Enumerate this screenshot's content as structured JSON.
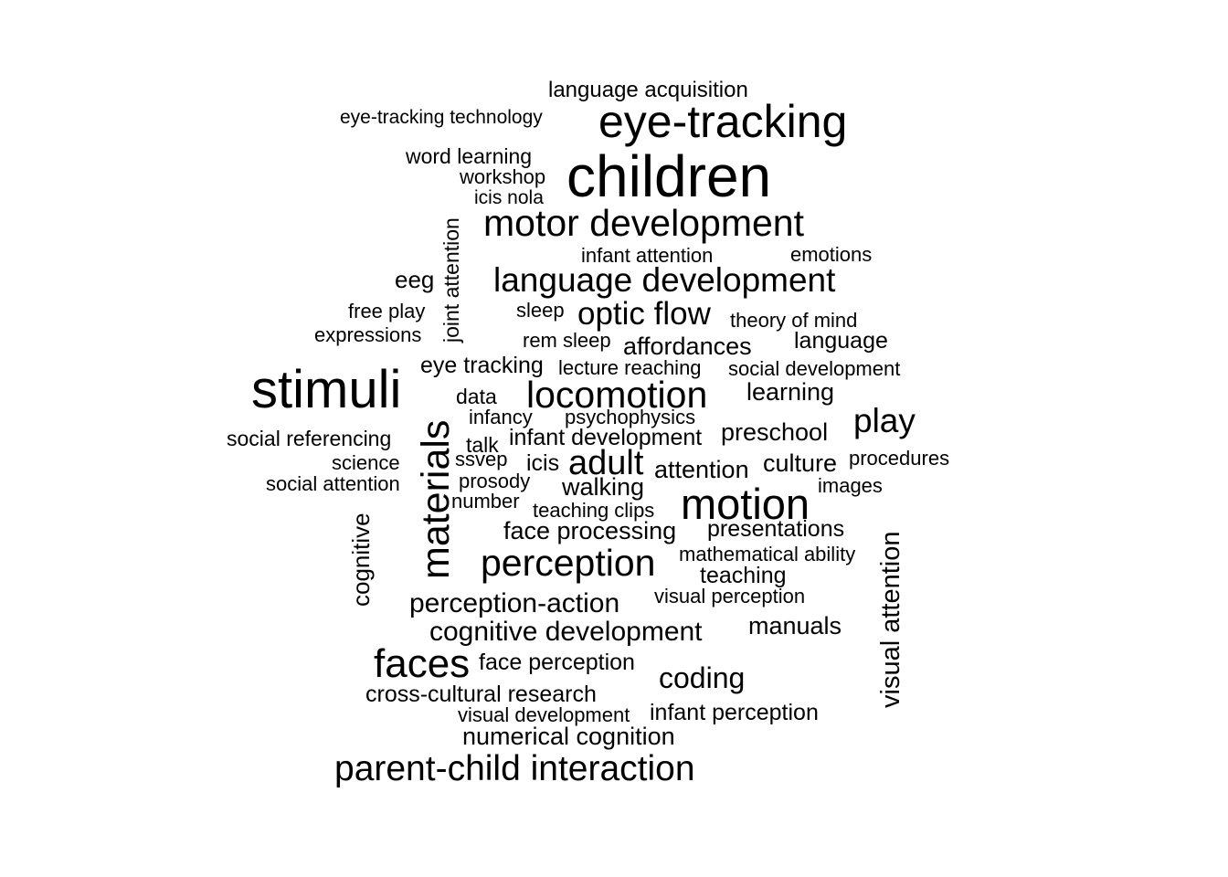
{
  "words": [
    "language acquisition",
    "eye-tracking technology",
    "eye-tracking",
    "word learning",
    "workshop",
    "children",
    "icis nola",
    "motor development",
    "infant attention",
    "emotions",
    "eeg",
    "language development",
    "free play",
    "sleep",
    "optic flow",
    "theory of mind",
    "expressions",
    "rem sleep",
    "affordances",
    "language",
    "eye tracking",
    "lecture reaching",
    "social development",
    "stimuli",
    "data",
    "locomotion",
    "learning",
    "infancy",
    "psychophysics",
    "play",
    "social referencing",
    "talk",
    "infant development",
    "preschool",
    "ssvep",
    "science",
    "icis",
    "adult",
    "culture",
    "procedures",
    "social attention",
    "prosody",
    "walking",
    "attention",
    "images",
    "number",
    "teaching clips",
    "motion",
    "face processing",
    "presentations",
    "perception",
    "mathematical ability",
    "teaching",
    "visual perception",
    "perception-action",
    "cognitive development",
    "manuals",
    "faces",
    "face perception",
    "coding",
    "cross-cultural research",
    "visual development",
    "infant perception",
    "numerical cognition",
    "parent-child interaction",
    "joint attention",
    "materials",
    "cognitive",
    "visual attention"
  ]
}
